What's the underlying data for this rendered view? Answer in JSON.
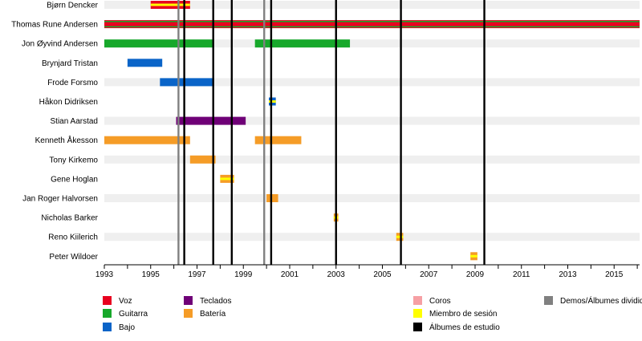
{
  "chart_data": {
    "type": "timeline",
    "x_range": [
      1993,
      2016.1
    ],
    "x_ticks": [
      "1993",
      "1995",
      "1997",
      "1999",
      "2001",
      "2003",
      "2005",
      "2007",
      "2009",
      "2011",
      "2013",
      "2015"
    ],
    "members": [
      {
        "name": "Bjørn Dencker",
        "roles": [
          {
            "role": "Voz",
            "start": 1995.0,
            "end": 1996.7,
            "session": true
          }
        ]
      },
      {
        "name": "Thomas Rune Andersen",
        "roles": [
          {
            "role": "Voz",
            "start": 1993.0,
            "end": 2016.1,
            "secondary": "Guitarra"
          }
        ]
      },
      {
        "name": "Jon Øyvind Andersen",
        "roles": [
          {
            "role": "Guitarra",
            "start": 1993.0,
            "end": 1997.7
          },
          {
            "role": "Guitarra",
            "start": 1999.5,
            "end": 2003.6
          }
        ]
      },
      {
        "name": "Brynjard Tristan",
        "roles": [
          {
            "role": "Bajo",
            "start": 1994.0,
            "end": 1995.5
          }
        ]
      },
      {
        "name": "Frode Forsmo",
        "roles": [
          {
            "role": "Bajo",
            "start": 1995.4,
            "end": 1997.7
          }
        ]
      },
      {
        "name": "Håkon Didriksen",
        "roles": [
          {
            "role": "Bajo",
            "start": 2000.1,
            "end": 2000.4,
            "session": true
          }
        ]
      },
      {
        "name": "Stian Aarstad",
        "roles": [
          {
            "role": "Teclados",
            "start": 1996.1,
            "end": 1999.1
          }
        ]
      },
      {
        "name": "Kenneth Åkesson",
        "roles": [
          {
            "role": "Batería",
            "start": 1993.0,
            "end": 1996.7
          },
          {
            "role": "Batería",
            "start": 1999.5,
            "end": 2001.5
          }
        ]
      },
      {
        "name": "Tony Kirkemo",
        "roles": [
          {
            "role": "Batería",
            "start": 1996.7,
            "end": 1997.8
          }
        ]
      },
      {
        "name": "Gene Hoglan",
        "roles": [
          {
            "role": "Batería",
            "start": 1998.0,
            "end": 1998.6,
            "session": true
          }
        ]
      },
      {
        "name": "Jan Roger Halvorsen",
        "roles": [
          {
            "role": "Batería",
            "start": 2000.0,
            "end": 2000.5
          }
        ]
      },
      {
        "name": "Nicholas Barker",
        "roles": [
          {
            "role": "Batería",
            "start": 2002.9,
            "end": 2003.1,
            "session": true
          }
        ]
      },
      {
        "name": "Reno Kiilerich",
        "roles": [
          {
            "role": "Batería",
            "start": 2005.6,
            "end": 2005.9,
            "session": true
          }
        ]
      },
      {
        "name": "Peter Wildoer",
        "roles": [
          {
            "role": "Batería",
            "start": 2008.8,
            "end": 2009.1,
            "session": true
          }
        ]
      }
    ],
    "studio_albums": [
      1996.45,
      1997.7,
      1998.5,
      2000.2,
      2003.0,
      2005.8,
      2009.4
    ],
    "demos": [
      1996.2,
      1999.9
    ],
    "legend": [
      {
        "label": "Voz",
        "color": "#e8001f"
      },
      {
        "label": "Guitarra",
        "color": "#17a82b"
      },
      {
        "label": "Bajo",
        "color": "#0a64c8"
      },
      {
        "label": "Teclados",
        "color": "#6f0077"
      },
      {
        "label": "Batería",
        "color": "#f59c27"
      },
      {
        "label": "Coros",
        "color": "#f6a0a4"
      },
      {
        "label": "Miembro de sesión",
        "color": "#ffff00"
      },
      {
        "label": "Álbumes de estudio",
        "color": "#000000"
      },
      {
        "label": "Demos/Álbumes divididos",
        "color": "#808080"
      }
    ]
  },
  "colors": {
    "Voz": "#e8001f",
    "Guitarra": "#17a82b",
    "Bajo": "#0a64c8",
    "Teclados": "#6f0077",
    "Batería": "#f59c27",
    "session": "#ffff00",
    "album": "#000000",
    "demo": "#808080",
    "stripe": "#efefef"
  }
}
